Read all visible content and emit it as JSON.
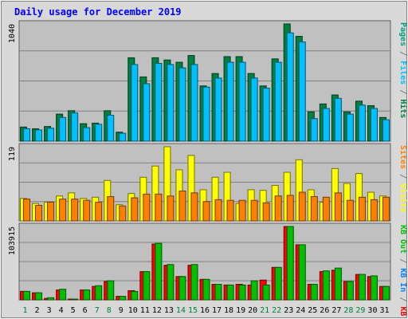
{
  "chart_data": {
    "type": "bar",
    "title": "Daily usage for December 2019",
    "categories": [
      "1",
      "2",
      "3",
      "4",
      "5",
      "6",
      "7",
      "8",
      "9",
      "10",
      "11",
      "12",
      "13",
      "14",
      "15",
      "16",
      "17",
      "18",
      "19",
      "20",
      "21",
      "22",
      "23",
      "24",
      "25",
      "26",
      "27",
      "28",
      "29",
      "30",
      "31"
    ],
    "weekend_days": [
      "1",
      "7",
      "8",
      "14",
      "15",
      "21",
      "22",
      "28",
      "29"
    ],
    "colors": {
      "title": "#0000ff",
      "hits": "#008040",
      "files": "#00c0ff",
      "pages": "#00a080",
      "visits": "#ffff00",
      "sites": "#ff8000",
      "kb_in": "#0080ff",
      "kb_out": "#00c000",
      "kb_f": "#ff0000",
      "weekend_label": "#008040",
      "panel_bg": "#c0c0c0",
      "frame_bg": "#d8d8d8",
      "gridline": "#808080"
    },
    "panels": [
      {
        "id": "hits_files_pages",
        "max_label": "1040",
        "ymax": 1040,
        "legend": [
          {
            "text": "Hits",
            "color_key": "hits"
          },
          {
            "text": " / ",
            "color_key": "gridline"
          },
          {
            "text": "Files",
            "color_key": "files"
          },
          {
            "text": " / ",
            "color_key": "gridline"
          },
          {
            "text": "Pages",
            "color_key": "pages"
          }
        ],
        "series": [
          {
            "name": "Hits",
            "color_key": "hits",
            "values": [
              125,
              110,
              130,
              240,
              270,
              155,
              160,
              270,
              80,
              740,
              570,
              740,
              720,
              700,
              760,
              490,
              600,
              750,
              750,
              600,
              490,
              730,
              1040,
              930,
              260,
              330,
              410,
              260,
              355,
              315,
              210
            ]
          },
          {
            "name": "Files",
            "color_key": "files",
            "values": [
              110,
              100,
              115,
              210,
              250,
              120,
              150,
              230,
              70,
              680,
              510,
              690,
              680,
              650,
              680,
              480,
              560,
              700,
              700,
              560,
              470,
              700,
              960,
              880,
              200,
              290,
              380,
              240,
              320,
              290,
              190
            ]
          }
        ]
      },
      {
        "id": "visits_sites",
        "max_label": "119",
        "ymax": 119,
        "legend": [
          {
            "text": "Visits",
            "color_key": "visits"
          },
          {
            "text": " / ",
            "color_key": "gridline"
          },
          {
            "text": "Sites",
            "color_key": "sites"
          }
        ],
        "series": [
          {
            "name": "Visits",
            "color_key": "visits",
            "values": [
              36,
              28,
              30,
              40,
              45,
              36,
              38,
              65,
              26,
              44,
              70,
              88,
              119,
              82,
              105,
              50,
              70,
              78,
              28,
              50,
              49,
              57,
              78,
              98,
              50,
              30,
              84,
              60,
              76,
              46,
              40
            ]
          },
          {
            "name": "Sites",
            "color_key": "sites",
            "values": [
              35,
              25,
              30,
              35,
              35,
              33,
              30,
              39,
              24,
              37,
              43,
              43,
              40,
              48,
              45,
              31,
              34,
              33,
              33,
              33,
              29,
              40,
              41,
              46,
              39,
              38,
              45,
              33,
              38,
              34,
              38
            ]
          }
        ]
      },
      {
        "id": "kbytes",
        "max_label": "103915",
        "ymax": 103915,
        "legend": [
          {
            "text": "KB F",
            "color_key": "kb_f"
          },
          {
            "text": " / ",
            "color_key": "gridline"
          },
          {
            "text": "KB In",
            "color_key": "kb_in"
          },
          {
            "text": " / ",
            "color_key": "gridline"
          },
          {
            "text": "KB Out",
            "color_key": "kb_out"
          }
        ],
        "series": [
          {
            "name": "KB F",
            "color_key": "kb_f",
            "values": [
              12000,
              10000,
              2000,
              14000,
              500,
              14000,
              19000,
              26000,
              5000,
              13000,
              40000,
              79000,
              49000,
              33000,
              49000,
              29000,
              22000,
              21000,
              22000,
              21000,
              28000,
              46000,
              103915,
              78000,
              22000,
              40000,
              42000,
              26000,
              36000,
              33000,
              19000
            ]
          },
          {
            "name": "KB Out",
            "color_key": "kb_out",
            "values": [
              12000,
              10000,
              3000,
              15000,
              1000,
              14000,
              20000,
              27000,
              5000,
              12000,
              40000,
              80000,
              50000,
              33000,
              50000,
              29000,
              22000,
              21000,
              21000,
              27000,
              21000,
              46000,
              103915,
              78000,
              22000,
              41000,
              45000,
              26000,
              36000,
              34000,
              19000
            ]
          }
        ]
      }
    ]
  }
}
